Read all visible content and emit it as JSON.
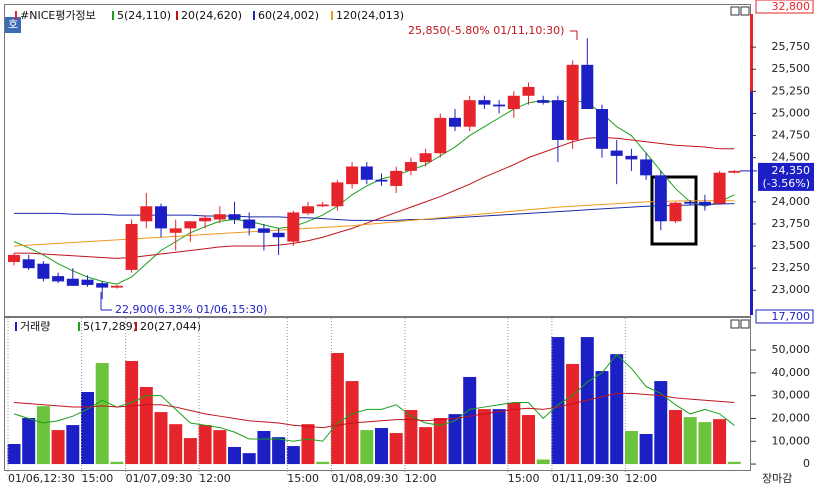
{
  "button": "호",
  "chart_data": [
    {
      "type": "candlestick",
      "title": "#NICE평가정보",
      "up_color": "#e5242b",
      "down_color": "#1c1fc4",
      "open": [
        23320,
        23350,
        23300,
        23160,
        23130,
        23120,
        23080,
        23030,
        23230,
        23780,
        23950,
        23650,
        23700,
        23780,
        23800,
        23860,
        23800,
        23700,
        23650,
        23550,
        23870,
        23950,
        23950,
        24200,
        24400,
        24250,
        24180,
        24350,
        24450,
        24550,
        24950,
        24850,
        25150,
        25100,
        25050,
        25200,
        25150,
        25150,
        24700,
        25550,
        25050,
        24580,
        24520,
        24480,
        24300,
        23780,
        24000,
        24000,
        23980,
        24330
      ],
      "high": [
        23420,
        23400,
        23330,
        23200,
        23250,
        23170,
        23100,
        23060,
        23800,
        24100,
        23980,
        23800,
        23780,
        23850,
        23950,
        24000,
        23880,
        23750,
        23700,
        23900,
        24000,
        24000,
        24250,
        24450,
        24450,
        24320,
        24400,
        24500,
        24600,
        25000,
        25050,
        25200,
        25200,
        25150,
        25250,
        25350,
        25200,
        25200,
        25600,
        25850,
        25100,
        24700,
        24600,
        24550,
        24350,
        24000,
        24020,
        24080,
        24350,
        24360
      ],
      "low": [
        23280,
        23230,
        23100,
        23080,
        23050,
        23040,
        22900,
        23020,
        23200,
        23700,
        23600,
        23450,
        23550,
        23700,
        23760,
        23750,
        23620,
        23450,
        23400,
        23500,
        23850,
        23940,
        23900,
        24150,
        24200,
        24180,
        24100,
        24300,
        24400,
        24500,
        24800,
        24800,
        25050,
        25000,
        24950,
        25100,
        25100,
        24450,
        24600,
        25050,
        24500,
        24200,
        24350,
        24250,
        23680,
        23760,
        23960,
        23900,
        23980,
        24320
      ],
      "close": [
        23400,
        23250,
        23130,
        23100,
        23050,
        23060,
        23030,
        23050,
        23750,
        23950,
        23700,
        23700,
        23780,
        23820,
        23860,
        23800,
        23700,
        23650,
        23600,
        23880,
        23950,
        23970,
        24220,
        24400,
        24250,
        24230,
        24350,
        24450,
        24550,
        24950,
        24850,
        25150,
        25100,
        25080,
        25200,
        25300,
        25120,
        24700,
        25550,
        25050,
        24600,
        24520,
        24480,
        24300,
        23780,
        23990,
        23980,
        23960,
        24330,
        24350
      ],
      "series": [
        {
          "name": "5(24,110)",
          "color": "#1aa01a",
          "values": [
            23550,
            23480,
            23400,
            23300,
            23220,
            23150,
            23100,
            23070,
            23150,
            23300,
            23450,
            23550,
            23650,
            23720,
            23780,
            23800,
            23780,
            23740,
            23700,
            23720,
            23780,
            23850,
            23950,
            24080,
            24180,
            24260,
            24300,
            24360,
            24420,
            24520,
            24620,
            24750,
            24850,
            24950,
            25050,
            25120,
            25150,
            25120,
            25150,
            25120,
            25000,
            24850,
            24750,
            24550,
            24350,
            24150,
            24000,
            23950,
            24000,
            24080
          ]
        },
        {
          "name": "20(24,620)",
          "color": "#c0141c",
          "values": [
            23420,
            23420,
            23410,
            23400,
            23390,
            23380,
            23370,
            23360,
            23370,
            23390,
            23410,
            23430,
            23450,
            23470,
            23490,
            23500,
            23500,
            23500,
            23510,
            23530,
            23560,
            23600,
            23650,
            23700,
            23760,
            23820,
            23880,
            23940,
            24000,
            24060,
            24130,
            24200,
            24280,
            24350,
            24420,
            24500,
            24560,
            24620,
            24680,
            24720,
            24730,
            24720,
            24700,
            24680,
            24660,
            24640,
            24630,
            24620,
            24600,
            24600
          ]
        },
        {
          "name": "60(24,002)",
          "color": "#1c2aa8",
          "values": [
            23870,
            23870,
            23870,
            23870,
            23860,
            23860,
            23860,
            23850,
            23850,
            23850,
            23850,
            23850,
            23850,
            23840,
            23840,
            23840,
            23830,
            23830,
            23830,
            23820,
            23820,
            23810,
            23800,
            23790,
            23790,
            23790,
            23790,
            23800,
            23800,
            23810,
            23820,
            23830,
            23840,
            23850,
            23860,
            23870,
            23880,
            23890,
            23900,
            23910,
            23920,
            23930,
            23940,
            23950,
            23955,
            23960,
            23965,
            23970,
            23975,
            23980
          ]
        },
        {
          "name": "120(24,013)",
          "color": "#f09a1e",
          "values": [
            23500,
            23510,
            23520,
            23530,
            23540,
            23550,
            23560,
            23570,
            23580,
            23590,
            23600,
            23610,
            23620,
            23630,
            23640,
            23650,
            23660,
            23670,
            23680,
            23690,
            23700,
            23710,
            23720,
            23730,
            23745,
            23760,
            23775,
            23790,
            23805,
            23820,
            23835,
            23850,
            23865,
            23880,
            23895,
            23910,
            23925,
            23940,
            23950,
            23960,
            23970,
            23980,
            23990,
            24000,
            24005,
            24010,
            24012,
            24013,
            24013,
            24013
          ]
        }
      ],
      "ylim": [
        22720,
        26125
      ],
      "yticks": [
        {
          "value": 23000,
          "label": "23,000"
        },
        {
          "value": 23250,
          "label": "23,250"
        },
        {
          "value": 23500,
          "label": "23,500"
        },
        {
          "value": 23750,
          "label": "23,750"
        },
        {
          "value": 24000,
          "label": "24,000"
        },
        {
          "value": 24500,
          "label": "24,500"
        },
        {
          "value": 24750,
          "label": "24,750"
        },
        {
          "value": 25000,
          "label": "25,000"
        },
        {
          "value": 25250,
          "label": "25,250"
        },
        {
          "value": 25500,
          "label": "25,500"
        },
        {
          "value": 25750,
          "label": "25,750"
        }
      ],
      "high_annotation": "25,850(-5.80% 01/11,10:30)",
      "low_annotation": "22,900(6.33% 01/06,15:30)",
      "current": {
        "value": 24350,
        "label": "24,350"
      },
      "change_label": "(-3.56%)",
      "upper_limit_label": "32,800",
      "lower_limit_label": "17,700"
    },
    {
      "type": "bar",
      "title": "거래량",
      "categories": [
        "01/06,12:30",
        null,
        null,
        null,
        null,
        "15:00",
        null,
        null,
        "01/07,09:30",
        null,
        null,
        null,
        null,
        "12:00",
        null,
        null,
        null,
        null,
        null,
        "15:00",
        null,
        null,
        "01/08,09:30",
        null,
        null,
        null,
        null,
        "12:00",
        null,
        null,
        null,
        null,
        null,
        null,
        "15:00",
        null,
        null,
        "01/11,09:30",
        null,
        null,
        null,
        null,
        "12:00",
        null,
        null,
        null,
        null,
        null,
        null,
        null
      ],
      "end_label": "장마감",
      "values": [
        8800,
        20200,
        25400,
        14900,
        17100,
        31600,
        44300,
        1000,
        45200,
        33800,
        22800,
        17500,
        11400,
        17100,
        14900,
        7500,
        4800,
        14500,
        11800,
        7900,
        17500,
        1000,
        48700,
        36400,
        14900,
        15800,
        13600,
        23700,
        16200,
        20200,
        21900,
        38200,
        24100,
        24100,
        26800,
        21500,
        2000,
        55700,
        43900,
        55700,
        40800,
        48200,
        14500,
        13200,
        36400,
        23700,
        20600,
        18400,
        19700,
        1000
      ],
      "colors": [
        "#1c1fc4",
        "#1c1fc4",
        "#6cc43c",
        "#e5242b",
        "#1c1fc4",
        "#1c1fc4",
        "#6cc43c",
        "#6cc43c",
        "#e5242b",
        "#e5242b",
        "#e5242b",
        "#e5242b",
        "#e5242b",
        "#e5242b",
        "#e5242b",
        "#1c1fc4",
        "#1c1fc4",
        "#1c1fc4",
        "#1c1fc4",
        "#1c1fc4",
        "#e5242b",
        "#6cc43c",
        "#e5242b",
        "#e5242b",
        "#6cc43c",
        "#1c1fc4",
        "#e5242b",
        "#e5242b",
        "#e5242b",
        "#e5242b",
        "#1c1fc4",
        "#1c1fc4",
        "#e5242b",
        "#1c1fc4",
        "#e5242b",
        "#e5242b",
        "#6cc43c",
        "#1c1fc4",
        "#e5242b",
        "#1c1fc4",
        "#1c1fc4",
        "#1c1fc4",
        "#6cc43c",
        "#1c1fc4",
        "#1c1fc4",
        "#e5242b",
        "#6cc43c",
        "#6cc43c",
        "#e5242b",
        "#6cc43c"
      ],
      "series": [
        {
          "name": "5(17,289)",
          "color": "#1aa01a",
          "values": [
            22000,
            20000,
            18000,
            19000,
            21000,
            24000,
            28000,
            25000,
            27000,
            30000,
            30000,
            24000,
            18000,
            17000,
            16000,
            14000,
            11000,
            11000,
            11000,
            10000,
            11000,
            10000,
            18000,
            22000,
            24000,
            24000,
            26000,
            21000,
            18000,
            17000,
            19000,
            24000,
            25000,
            26000,
            27000,
            27000,
            20000,
            26000,
            30000,
            36000,
            40000,
            48000,
            42000,
            34000,
            31000,
            26000,
            22000,
            24000,
            22000,
            17000
          ]
        },
        {
          "name": "20(27,044)",
          "color": "#c0141c",
          "values": [
            27000,
            26500,
            26000,
            25500,
            25000,
            25000,
            25500,
            25000,
            25500,
            26000,
            26000,
            25000,
            23500,
            22000,
            21000,
            20000,
            19000,
            18500,
            18000,
            17000,
            16500,
            16000,
            17000,
            18000,
            18500,
            19000,
            19500,
            19500,
            19000,
            19500,
            20000,
            21000,
            22000,
            23000,
            24000,
            24500,
            24000,
            25000,
            26500,
            28000,
            29500,
            31000,
            31000,
            30500,
            30000,
            29000,
            28500,
            28000,
            27500,
            27000
          ]
        }
      ],
      "ylim": [
        -2600,
        62300
      ],
      "yticks": [
        0,
        {
          "value": 10000,
          "label": "10,000"
        },
        {
          "value": 20000,
          "label": "20,000"
        },
        {
          "value": 30000,
          "label": "30,000"
        },
        {
          "value": 40000,
          "label": "40,000"
        },
        {
          "value": 50000,
          "label": "50,000"
        }
      ]
    }
  ]
}
